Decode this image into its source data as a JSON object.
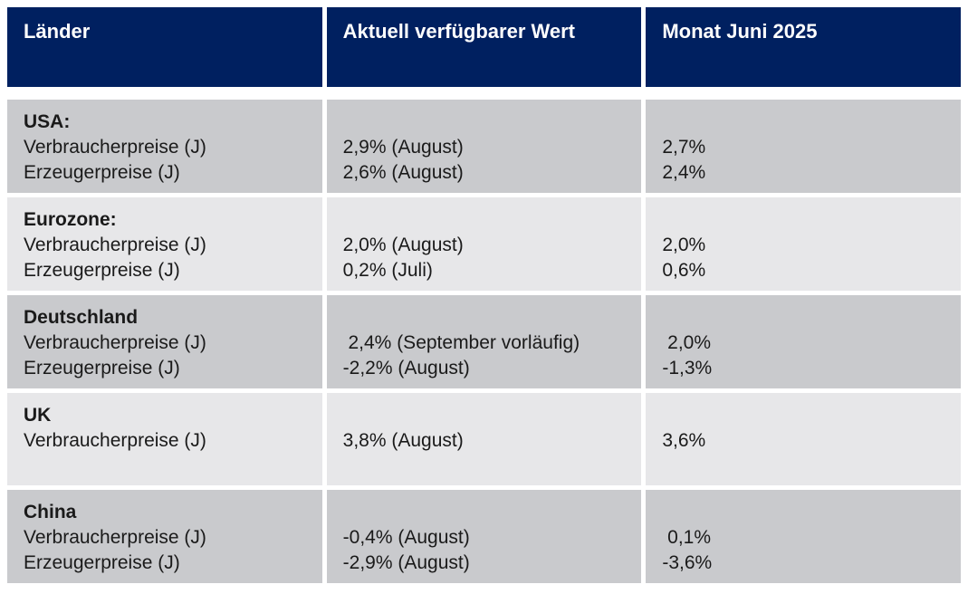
{
  "colors": {
    "header_bg": "#002060",
    "header_text": "#ffffff",
    "row_dark": "#c9cacd",
    "row_light": "#e7e7e9",
    "text": "#1a1a1a",
    "page_bg": "#ffffff"
  },
  "chart_data": {
    "type": "table",
    "columns": [
      "Länder",
      "Aktuell verfügbarer Wert",
      "Monat Juni 2025"
    ],
    "rows": [
      {
        "country": "USA:",
        "items": [
          {
            "label": "Verbraucherpreise (J)",
            "current": "2,9% (August)",
            "june": "2,7%"
          },
          {
            "label": "Erzeugerpreise (J)",
            "current": "2,6% (August)",
            "june": "2,4%"
          }
        ]
      },
      {
        "country": "Eurozone:",
        "items": [
          {
            "label": "Verbraucherpreise (J)",
            "current": "2,0% (August)",
            "june": "2,0%"
          },
          {
            "label": "Erzeugerpreise (J)",
            "current": "0,2% (Juli)",
            "june": "0,6%"
          }
        ]
      },
      {
        "country": "Deutschland",
        "items": [
          {
            "label": "Verbraucherpreise (J)",
            "current": " 2,4% (September vorläufig)",
            "june": " 2,0%"
          },
          {
            "label": "Erzeugerpreise (J)",
            "current": "-2,2% (August)",
            "june": "-1,3%"
          }
        ]
      },
      {
        "country": "UK",
        "items": [
          {
            "label": "Verbraucherpreise (J)",
            "current": "3,8% (August)",
            "june": "3,6%"
          }
        ]
      },
      {
        "country": "China",
        "items": [
          {
            "label": "Verbraucherpreise (J)",
            "current": "-0,4% (August)",
            "june": " 0,1%"
          },
          {
            "label": "Erzeugerpreise (J)",
            "current": "-2,9% (August)",
            "june": "-3,6%"
          }
        ]
      }
    ]
  }
}
